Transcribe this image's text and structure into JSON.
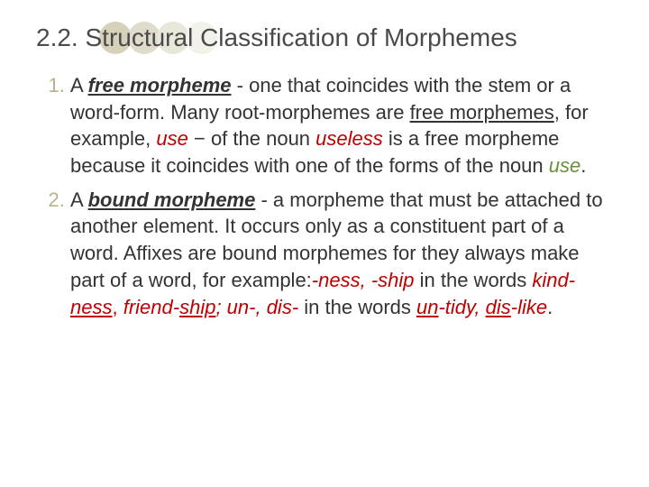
{
  "circle_colors": [
    "#d6d2ba",
    "#dfdccb",
    "#e9e7da",
    "#f2f1ea"
  ],
  "title": "2.2. Structural Classification of Morphemes",
  "item1": {
    "lead": "A ",
    "term": "free morpheme",
    "dash": " - ",
    "p1": "one that coincides with the stem or a word-form. Many root-morphemes are ",
    "free_morphemes": "free morphemes",
    "p2": ", for example, ",
    "use1": "use",
    "p3": " − of the noun ",
    "useless": "useless",
    "p4": " is  a free morpheme because it coincides with one of the forms of the noun ",
    "use2": "use",
    "period": "."
  },
  "item2": {
    "lead": "A ",
    "term": "bound morpheme",
    "dash": " - ",
    "p1": "a morpheme that must be attached to another element. It occurs only as a constituent part of a word. Affixes are bound morphemes for they always make part of a word, for example:",
    "ness_ship": "-ness, -ship",
    "p2": " in the words ",
    "kind": "kind-",
    "ness": "ness",
    "comma1": ", ",
    "friend": "friend-",
    "ship": "ship",
    "semi": "; ",
    "un_dis": "un-, dis-",
    "p3": " in the words ",
    "un": "un",
    "tidy": "-tidy, ",
    "dis": "dis",
    "like": "-like",
    "period": "."
  }
}
